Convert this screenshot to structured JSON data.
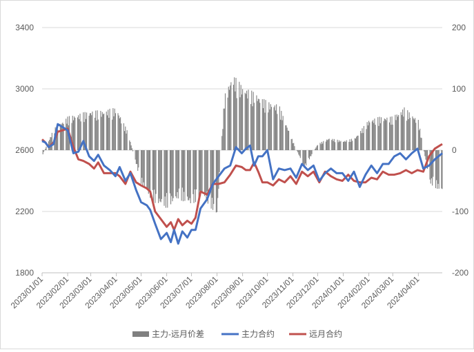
{
  "chart_data": {
    "type": "bar+line",
    "title": "",
    "x_ticks": [
      "2023/01/01",
      "2023/02/01",
      "2023/03/01",
      "2023/04/01",
      "2023/05/01",
      "2023/06/01",
      "2023/07/01",
      "2023/08/01",
      "2023/09/01",
      "2023/10/01",
      "2023/11/01",
      "2023/12/01",
      "2024/01/01",
      "2024/02/01",
      "2024/03/01",
      "2024/04/01"
    ],
    "x_range": [
      "2023-01-01",
      "2024-04-30"
    ],
    "y_left": {
      "min": 1800,
      "max": 3400,
      "ticks": [
        "1800",
        "2200",
        "2600",
        "3000",
        "3400"
      ]
    },
    "y_right": {
      "min": -200,
      "max": 200,
      "ticks": [
        "-200",
        "-100",
        "0",
        "100",
        "200"
      ]
    },
    "gridlines": true,
    "legend_position": "bottom",
    "legend": [
      {
        "label": "主力-远月价差",
        "color": "#808080",
        "kind": "bar"
      },
      {
        "label": "主力合约",
        "color": "#4472c4",
        "kind": "line"
      },
      {
        "label": "远月合约",
        "color": "#c0504d",
        "kind": "line"
      }
    ],
    "series": [
      {
        "name": "主力合约",
        "axis": "left",
        "x": [
          "2023-01-01",
          "2023-01-05",
          "2023-01-09",
          "2023-01-15",
          "2023-01-20",
          "2023-02-01",
          "2023-02-08",
          "2023-02-14",
          "2023-02-20",
          "2023-02-27",
          "2023-03-05",
          "2023-03-10",
          "2023-03-17",
          "2023-03-24",
          "2023-03-31",
          "2023-04-05",
          "2023-04-12",
          "2023-04-18",
          "2023-04-25",
          "2023-05-01",
          "2023-05-08",
          "2023-05-12",
          "2023-05-18",
          "2023-05-25",
          "2023-06-01",
          "2023-06-06",
          "2023-06-10",
          "2023-06-15",
          "2023-06-20",
          "2023-06-26",
          "2023-07-01",
          "2023-07-06",
          "2023-07-12",
          "2023-07-20",
          "2023-07-27",
          "2023-08-03",
          "2023-08-10",
          "2023-08-17",
          "2023-08-24",
          "2023-08-31",
          "2023-09-05",
          "2023-09-10",
          "2023-09-15",
          "2023-09-20",
          "2023-09-25",
          "2023-10-01",
          "2023-10-08",
          "2023-10-15",
          "2023-10-22",
          "2023-10-29",
          "2023-11-05",
          "2023-11-12",
          "2023-11-19",
          "2023-11-26",
          "2023-12-03",
          "2023-12-10",
          "2023-12-17",
          "2023-12-24",
          "2023-12-31",
          "2024-01-07",
          "2024-01-14",
          "2024-01-21",
          "2024-01-28",
          "2024-02-04",
          "2024-02-11",
          "2024-02-18",
          "2024-02-25",
          "2024-03-03",
          "2024-03-10",
          "2024-03-17",
          "2024-03-24",
          "2024-03-31",
          "2024-04-07",
          "2024-04-14",
          "2024-04-21",
          "2024-04-30"
        ],
        "y": [
          2660,
          2650,
          2620,
          2640,
          2770,
          2730,
          2580,
          2590,
          2660,
          2560,
          2530,
          2570,
          2500,
          2470,
          2430,
          2490,
          2400,
          2450,
          2340,
          2260,
          2240,
          2210,
          2120,
          2020,
          2060,
          2000,
          2080,
          1990,
          2070,
          2030,
          2080,
          2080,
          2220,
          2280,
          2380,
          2430,
          2480,
          2500,
          2620,
          2580,
          2610,
          2630,
          2500,
          2560,
          2560,
          2600,
          2410,
          2480,
          2470,
          2480,
          2420,
          2510,
          2470,
          2500,
          2400,
          2450,
          2480,
          2450,
          2450,
          2400,
          2460,
          2360,
          2440,
          2500,
          2450,
          2510,
          2510,
          2560,
          2580,
          2540,
          2580,
          2610,
          2480,
          2500,
          2540,
          2580
        ]
      },
      {
        "name": "远月合约",
        "axis": "left",
        "x": [
          "2023-01-01",
          "2023-01-05",
          "2023-01-09",
          "2023-01-15",
          "2023-01-20",
          "2023-02-01",
          "2023-02-08",
          "2023-02-14",
          "2023-02-20",
          "2023-02-27",
          "2023-03-05",
          "2023-03-10",
          "2023-03-17",
          "2023-03-24",
          "2023-03-31",
          "2023-04-05",
          "2023-04-12",
          "2023-04-18",
          "2023-04-25",
          "2023-05-01",
          "2023-05-08",
          "2023-05-12",
          "2023-05-18",
          "2023-05-25",
          "2023-06-01",
          "2023-06-06",
          "2023-06-10",
          "2023-06-15",
          "2023-06-20",
          "2023-06-26",
          "2023-07-01",
          "2023-07-06",
          "2023-07-12",
          "2023-07-20",
          "2023-07-27",
          "2023-08-03",
          "2023-08-10",
          "2023-08-17",
          "2023-08-24",
          "2023-08-31",
          "2023-09-05",
          "2023-09-10",
          "2023-09-15",
          "2023-09-20",
          "2023-09-25",
          "2023-10-01",
          "2023-10-08",
          "2023-10-15",
          "2023-10-22",
          "2023-10-29",
          "2023-11-05",
          "2023-11-12",
          "2023-11-19",
          "2023-11-26",
          "2023-12-03",
          "2023-12-10",
          "2023-12-17",
          "2023-12-24",
          "2023-12-31",
          "2024-01-07",
          "2024-01-14",
          "2024-01-21",
          "2024-01-28",
          "2024-02-04",
          "2024-02-11",
          "2024-02-18",
          "2024-02-25",
          "2024-03-03",
          "2024-03-10",
          "2024-03-17",
          "2024-03-24",
          "2024-03-31",
          "2024-04-07",
          "2024-04-14",
          "2024-04-21",
          "2024-04-30"
        ],
        "y": [
          2670,
          2650,
          2620,
          2650,
          2720,
          2740,
          2620,
          2540,
          2530,
          2510,
          2480,
          2520,
          2450,
          2450,
          2450,
          2430,
          2380,
          2460,
          2390,
          2370,
          2350,
          2330,
          2200,
          2150,
          2100,
          2130,
          2080,
          2150,
          2110,
          2140,
          2120,
          2160,
          2330,
          2310,
          2380,
          2380,
          2390,
          2440,
          2500,
          2490,
          2470,
          2470,
          2520,
          2460,
          2390,
          2390,
          2370,
          2410,
          2390,
          2430,
          2380,
          2460,
          2430,
          2460,
          2390,
          2460,
          2430,
          2410,
          2400,
          2440,
          2400,
          2390,
          2390,
          2420,
          2410,
          2460,
          2440,
          2440,
          2450,
          2470,
          2450,
          2470,
          2460,
          2560,
          2610,
          2640
        ]
      },
      {
        "name": "主力-远月价差",
        "axis": "right",
        "x": [
          "2023-01-01",
          "2023-01-15",
          "2023-02-01",
          "2023-02-15",
          "2023-03-01",
          "2023-03-15",
          "2023-04-01",
          "2023-04-15",
          "2023-05-01",
          "2023-05-15",
          "2023-06-01",
          "2023-06-15",
          "2023-07-01",
          "2023-07-15",
          "2023-08-01",
          "2023-08-10",
          "2023-08-20",
          "2023-09-01",
          "2023-09-15",
          "2023-10-01",
          "2023-10-15",
          "2023-11-01",
          "2023-11-15",
          "2023-12-01",
          "2023-12-15",
          "2024-01-01",
          "2024-01-15",
          "2024-02-01",
          "2024-02-15",
          "2024-03-01",
          "2024-03-15",
          "2024-04-01",
          "2024-04-15",
          "2024-04-30"
        ],
        "y": [
          -10,
          35,
          55,
          60,
          65,
          65,
          70,
          30,
          -55,
          -85,
          -95,
          -80,
          -90,
          -75,
          -110,
          90,
          125,
          105,
          95,
          80,
          75,
          15,
          -30,
          10,
          20,
          15,
          20,
          50,
          55,
          55,
          70,
          50,
          -55,
          -70
        ]
      }
    ]
  }
}
